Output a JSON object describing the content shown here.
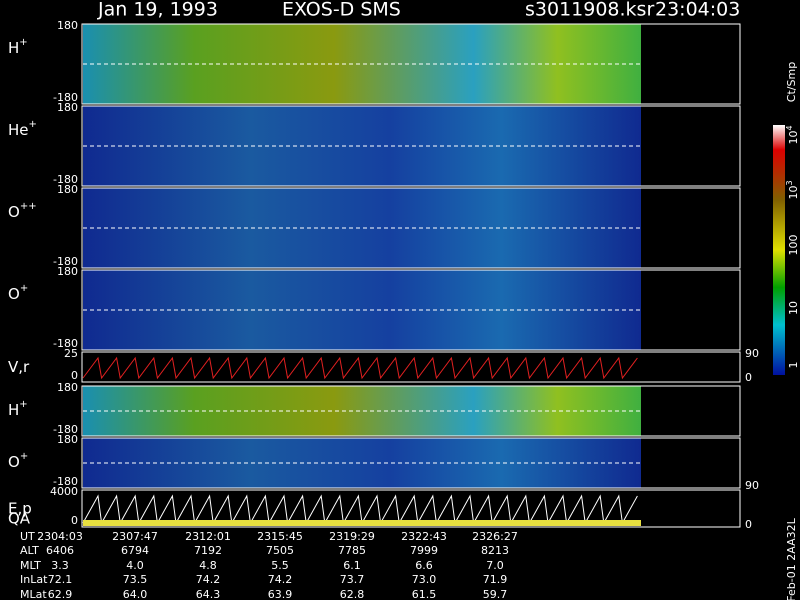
{
  "header": {
    "date": "Jan 19, 1993",
    "instrument": "EXOS-D SMS",
    "file": "s3011908.ksr",
    "time": "23:04:03"
  },
  "panels": [
    {
      "label": "H",
      "sup": "+",
      "ticks": [
        "180",
        "-180"
      ],
      "right": []
    },
    {
      "label": "He",
      "sup": "+",
      "ticks": [
        "180",
        "-180"
      ],
      "right": []
    },
    {
      "label": "O",
      "sup": "++",
      "ticks": [
        "180",
        "-180"
      ],
      "right": []
    },
    {
      "label": "O",
      "sup": "+",
      "ticks": [
        "180",
        "-180"
      ],
      "right": []
    },
    {
      "label": "V,r",
      "sup": "",
      "ticks": [
        "25",
        "0"
      ],
      "right": [
        "90",
        "0"
      ]
    },
    {
      "label": "H",
      "sup": "+",
      "ticks": [
        "180",
        "-180"
      ],
      "right": []
    },
    {
      "label": "O",
      "sup": "+",
      "ticks": [
        "180",
        "-180"
      ],
      "right": [
        "90"
      ]
    },
    {
      "label": "E,p",
      "sup": "",
      "ticks": [
        "4000",
        "0"
      ],
      "right": [
        "0"
      ],
      "extra": "QA"
    }
  ],
  "colorbar": {
    "unit": "Ct/Smp",
    "ticks": [
      {
        "base": "10",
        "exp": "4"
      },
      {
        "base": "10",
        "exp": "3"
      },
      {
        "base": "100",
        "exp": ""
      },
      {
        "base": "10",
        "exp": ""
      },
      {
        "base": "1",
        "exp": ""
      }
    ]
  },
  "table": {
    "row_labels": [
      "UT",
      "ALT",
      "MLT",
      "InLat",
      "MLat"
    ],
    "rows": [
      [
        "2304:03",
        "2307:47",
        "2312:01",
        "2315:45",
        "2319:29",
        "2322:43",
        "2326:27"
      ],
      [
        "6406",
        "6794",
        "7192",
        "7505",
        "7785",
        "7999",
        "8213"
      ],
      [
        "3.3",
        "4.0",
        "4.8",
        "5.5",
        "6.1",
        "6.6",
        "7.0"
      ],
      [
        "72.1",
        "73.5",
        "74.2",
        "74.2",
        "73.7",
        "73.0",
        "71.9"
      ],
      [
        "62.9",
        "64.0",
        "64.3",
        "63.9",
        "62.8",
        "61.5",
        "59.7"
      ]
    ]
  },
  "footer": "Feb-01 2AA32L"
}
